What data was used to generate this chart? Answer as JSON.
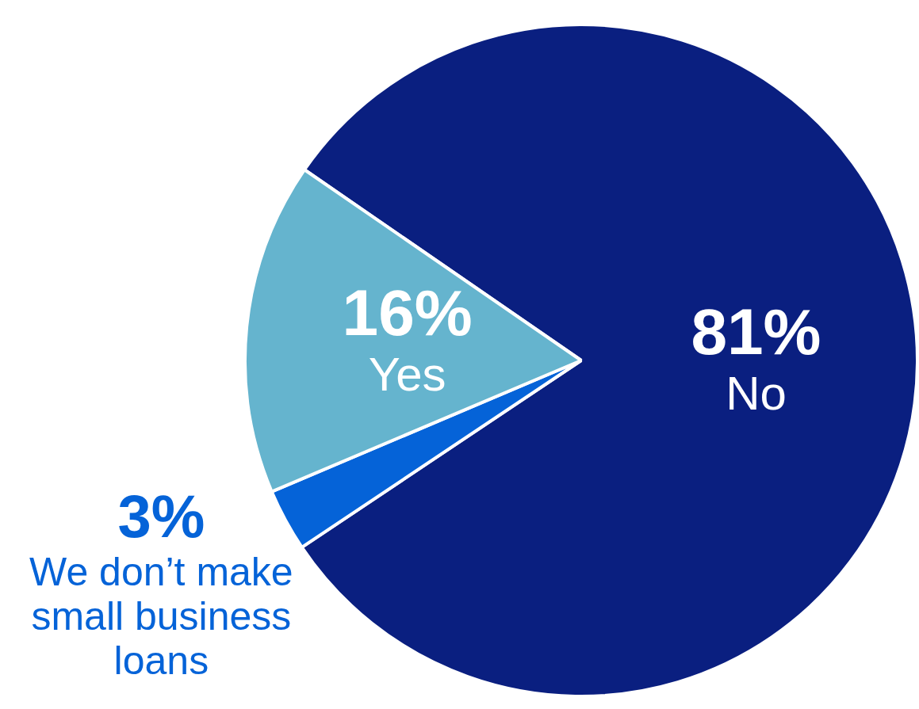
{
  "chart_data": {
    "type": "pie",
    "categories": [
      "No",
      "We don’t make small business loans",
      "Yes"
    ],
    "values": [
      81,
      3,
      16
    ],
    "colors": [
      "#0a1f80",
      "#0563d8",
      "#65b4ce"
    ],
    "value_labels": [
      "81%",
      "3%",
      "16%"
    ],
    "legend": false
  }
}
